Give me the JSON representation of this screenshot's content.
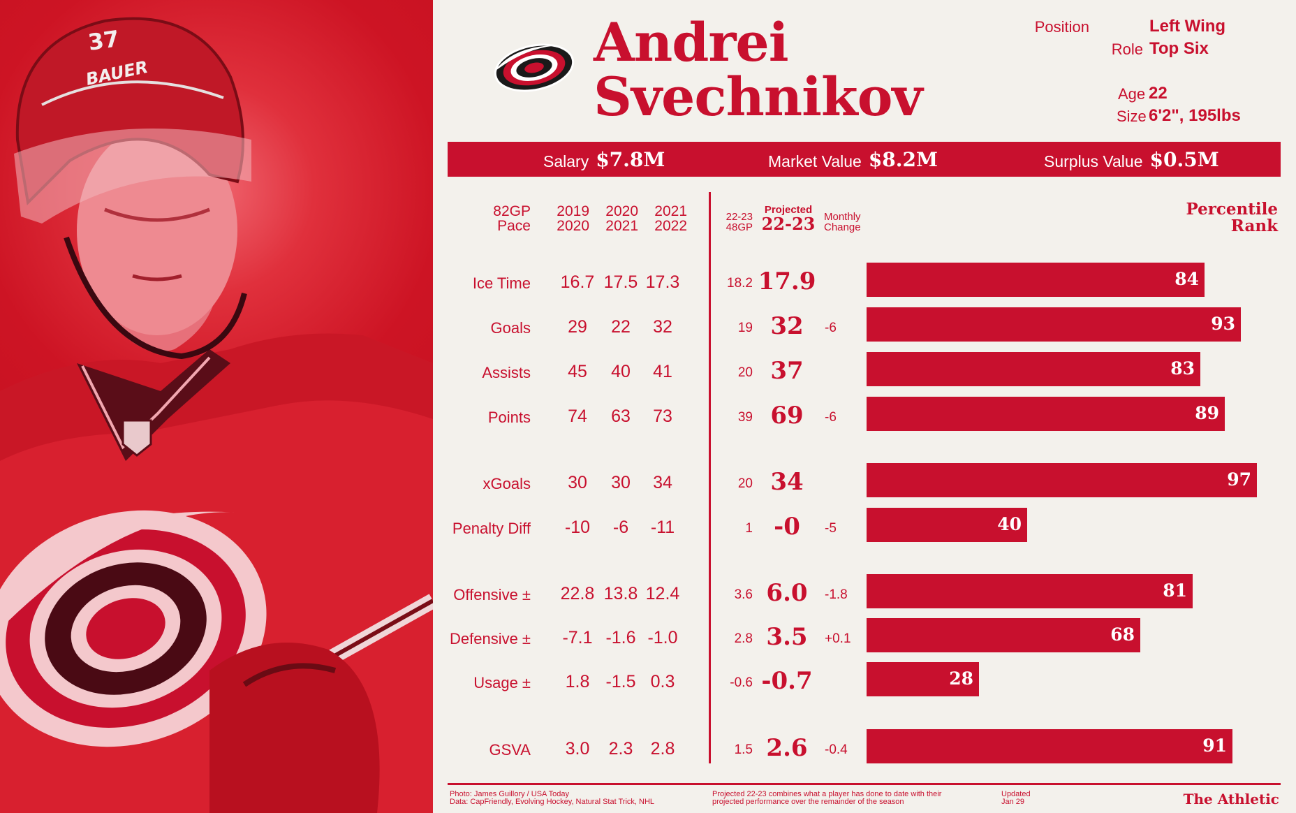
{
  "player": {
    "first_name": "Andrei",
    "last_name": "Svechnikov",
    "helmet_number": "37",
    "helmet_brand": "BAUER",
    "position_label": "Position",
    "position": "Left Wing",
    "role_label": "Role",
    "role": "Top Six",
    "age_label": "Age",
    "age": "22",
    "size_label": "Size",
    "size": "6'2\", 195lbs"
  },
  "contract": {
    "salary_label": "Salary",
    "salary": "$7.8M",
    "market_label": "Market Value",
    "market": "$8.2M",
    "surplus_label": "Surplus Value",
    "surplus": "$0.5M"
  },
  "headers": {
    "pace": [
      "82GP",
      "Pace"
    ],
    "seasons": [
      [
        "2019",
        "2020"
      ],
      [
        "2020",
        "2021"
      ],
      [
        "2021",
        "2022"
      ]
    ],
    "pace_2223": [
      "22-23",
      "48GP"
    ],
    "projected": [
      "Projected",
      "22-23"
    ],
    "monthly": [
      "Monthly",
      "Change"
    ],
    "percentile": [
      "Percentile",
      "Rank"
    ]
  },
  "chart_data": {
    "type": "bar",
    "categories": [
      "Ice Time",
      "Goals",
      "Assists",
      "Points",
      "xGoals",
      "Penalty Diff",
      "Offensive ±",
      "Defensive ±",
      "Usage ±",
      "GSVA"
    ],
    "values": [
      84,
      93,
      83,
      89,
      97,
      40,
      81,
      68,
      28,
      91
    ],
    "ylabel": "Percentile Rank",
    "ylim": [
      0,
      100
    ],
    "table": {
      "season_2019_2020": [
        "16.7",
        "29",
        "45",
        "74",
        "30",
        "-10",
        "22.8",
        "-7.1",
        "1.8",
        "3.0"
      ],
      "season_2020_2021": [
        "17.5",
        "22",
        "40",
        "63",
        "30",
        "-6",
        "13.8",
        "-1.6",
        "-1.5",
        "2.3"
      ],
      "season_2021_2022": [
        "17.3",
        "32",
        "41",
        "73",
        "34",
        "-11",
        "12.4",
        "-1.0",
        "0.3",
        "2.8"
      ],
      "pace_22_23_48gp": [
        "18.2",
        "19",
        "20",
        "39",
        "20",
        "1",
        "3.6",
        "2.8",
        "-0.6",
        "1.5"
      ],
      "projected_22_23": [
        "17.9",
        "32",
        "37",
        "69",
        "34",
        "-0",
        "6.0",
        "3.5",
        "-0.7",
        "2.6"
      ],
      "monthly_change": [
        "",
        "-6",
        "",
        "-6",
        "",
        "-5",
        "-1.8",
        "+0.1",
        "",
        "-0.4"
      ]
    }
  },
  "footer": {
    "photo_credit": "Photo: James Guillory / USA Today",
    "data_credit": "Data: CapFriendly, Evolving Hockey, Natural Stat Trick, NHL",
    "note_1": "Projected 22-23 combines what a player has done to date with their",
    "note_2": "projected performance over the remainder of the season",
    "updated_label": "Updated",
    "updated": "Jan 29",
    "brand": "The Athletic"
  },
  "colors": {
    "accent": "#c8102e",
    "background": "#f3f1ec",
    "logo_black": "#1a1a1a"
  }
}
